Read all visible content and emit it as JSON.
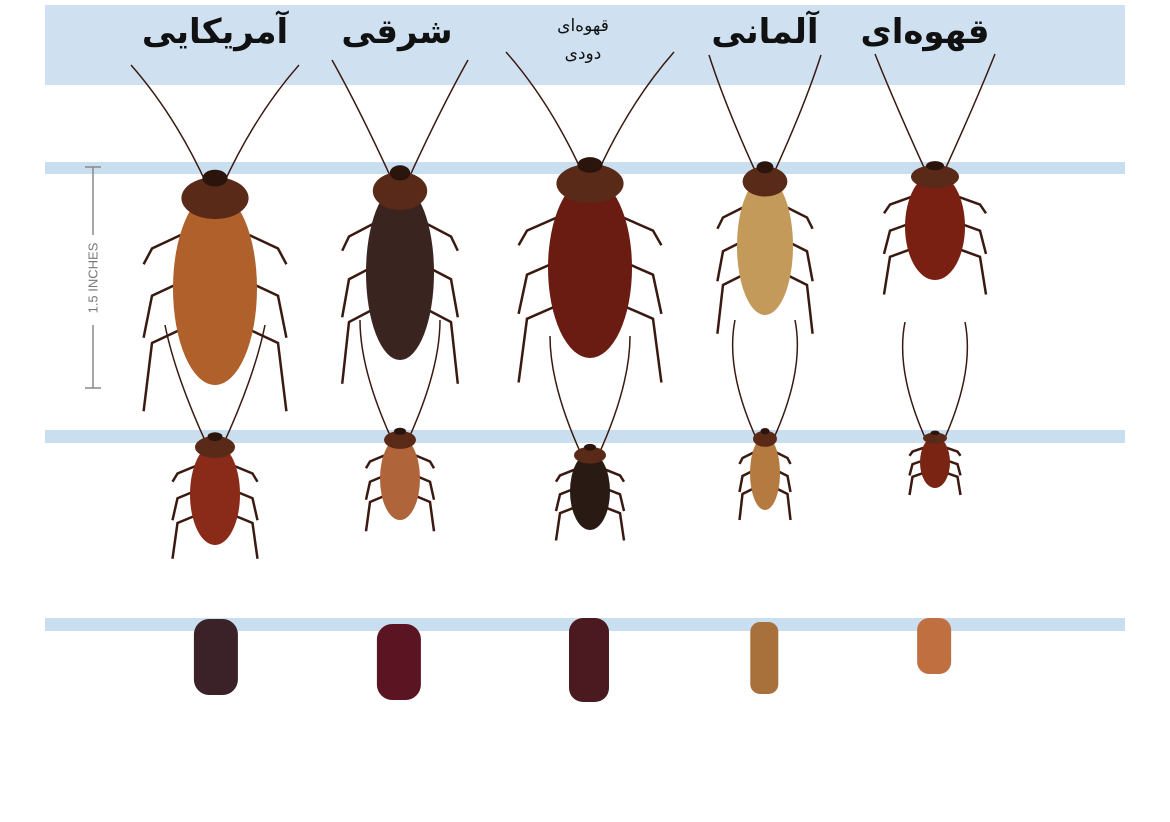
{
  "header": {
    "columns": [
      {
        "label": "آمریکایی"
      },
      {
        "label": "شرقی"
      },
      {
        "label": "قهوه‌ای",
        "label2": "دودی"
      },
      {
        "label": "آلمانی"
      },
      {
        "label": "قهوه‌ای"
      }
    ]
  },
  "scale": {
    "label": "1.5 INCHES"
  },
  "colors": {
    "band": "#c9deef",
    "species": [
      "#b0602a",
      "#3a2420",
      "#6a1c12",
      "#c49a5a",
      "#7a2012"
    ],
    "nymphs": [
      "#8a2a18",
      "#b0643a",
      "#2a1a14",
      "#b47a40",
      "#7a2414"
    ],
    "eggs": [
      "#3a2228",
      "#5a1422",
      "#4a1a20",
      "#a8703a",
      "#c07040"
    ]
  }
}
